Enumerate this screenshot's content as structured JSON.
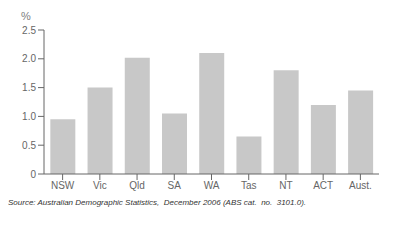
{
  "chart_data": {
    "type": "bar",
    "ylabel": "%",
    "annotations": [
      "Source: Australian Demographic Statistics,  December 2006 (ABS cat.  no.  3101.0)."
    ],
    "categories": [
      "NSW",
      "Vic",
      "Qld",
      "SA",
      "WA",
      "Tas",
      "NT",
      "ACT",
      "Aust."
    ],
    "values": [
      0.95,
      1.5,
      2.02,
      1.05,
      2.1,
      0.65,
      1.8,
      1.2,
      1.45
    ],
    "color": "#c8c8c8",
    "ylim": [
      0,
      2.5
    ],
    "yticks": [
      0,
      0.5,
      {
        "value": 1.0,
        "label": "1.0"
      },
      1.5,
      {
        "value": 2.0,
        "label": "2.0"
      },
      2.5
    ],
    "grid": false
  }
}
